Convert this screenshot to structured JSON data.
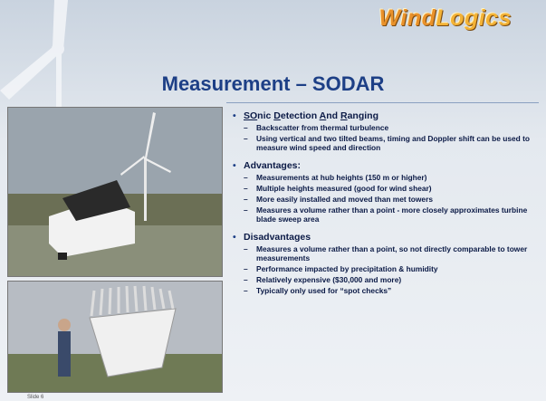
{
  "logo": [
    "Wind",
    "Logics"
  ],
  "title": "Measurement – SODAR",
  "bullets": [
    {
      "heading": [
        {
          "text": "SO",
          "underline": true
        },
        {
          "text": "nic ",
          "underline": false
        },
        {
          "text": "D",
          "underline": true
        },
        {
          "text": "etection ",
          "underline": false
        },
        {
          "text": "A",
          "underline": true
        },
        {
          "text": "nd ",
          "underline": false
        },
        {
          "text": "R",
          "underline": true
        },
        {
          "text": "anging",
          "underline": false
        }
      ],
      "items": [
        "Backscatter from thermal turbulence",
        "Using vertical and two tilted beams, timing and Doppler shift can be used to measure wind speed and direction"
      ]
    },
    {
      "heading": [
        {
          "text": "Advantages:",
          "underline": false
        }
      ],
      "items": [
        "Measurements at hub heights (150 m or higher)",
        "Multiple heights measured (good for wind shear)",
        "More easily installed and moved than met towers",
        "Measures a volume rather than a point - more closely approximates turbine blade sweep area"
      ]
    },
    {
      "heading": [
        {
          "text": "Disadvantages",
          "underline": false
        }
      ],
      "items": [
        "Measures a volume rather than a point, so not directly comparable to tower measurements",
        "Performance impacted by precipitation & humidity",
        "Relatively expensive ($30,000 and more)",
        "Typically only used for “spot checks”"
      ]
    }
  ],
  "slide_number": "Slide 6"
}
